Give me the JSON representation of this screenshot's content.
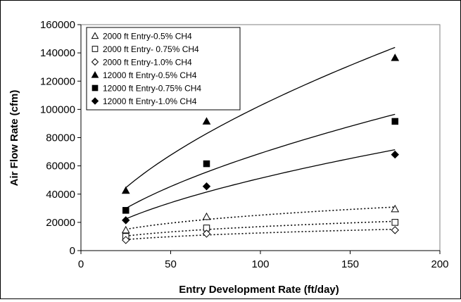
{
  "chart_data": {
    "type": "scatter",
    "title": "",
    "xlabel": "Entry Development Rate (ft/day)",
    "ylabel": "Air Flow Rate (cfm)",
    "xlim": [
      0,
      200
    ],
    "ylim": [
      0,
      160000
    ],
    "xticks": [
      0,
      50,
      100,
      150,
      200
    ],
    "yticks": [
      0,
      20000,
      40000,
      60000,
      80000,
      100000,
      120000,
      140000,
      160000
    ],
    "xtick_labels": [
      "0",
      "50",
      "100",
      "150",
      "200"
    ],
    "ytick_labels": [
      "0",
      "20000",
      "40000",
      "60000",
      "80000",
      "100000",
      "120000",
      "140000",
      "160000"
    ],
    "grid": false,
    "legend_position": "top-left, inside plot",
    "trendline": "power fit through each series",
    "series": [
      {
        "name": "2000 ft Entry-0.5% CH4",
        "marker": "triangle-open",
        "trendline_style": "dotted",
        "points": [
          [
            25,
            14500
          ],
          [
            70,
            24000
          ],
          [
            175,
            29500
          ]
        ]
      },
      {
        "name": "2000 ft Entry- 0.75% CH4",
        "marker": "square-open",
        "trendline_style": "dotted",
        "points": [
          [
            25,
            10000
          ],
          [
            70,
            16000
          ],
          [
            175,
            20000
          ]
        ]
      },
      {
        "name": "2000 ft Entry-1.0% CH4",
        "marker": "diamond-open",
        "trendline_style": "dotted",
        "points": [
          [
            25,
            7500
          ],
          [
            70,
            12000
          ],
          [
            175,
            14500
          ]
        ]
      },
      {
        "name": "12000 ft Entry-0.5% CH4",
        "marker": "triangle-filled",
        "trendline_style": "solid",
        "points": [
          [
            25,
            42500
          ],
          [
            70,
            91500
          ],
          [
            175,
            136500
          ]
        ]
      },
      {
        "name": "12000 ft Entry-0.75% CH4",
        "marker": "square-filled",
        "trendline_style": "solid",
        "points": [
          [
            25,
            28500
          ],
          [
            70,
            61500
          ],
          [
            175,
            91500
          ]
        ]
      },
      {
        "name": "12000 ft Entry-1.0% CH4",
        "marker": "diamond-filled",
        "trendline_style": "solid",
        "points": [
          [
            25,
            21500
          ],
          [
            70,
            45500
          ],
          [
            175,
            68000
          ]
        ]
      }
    ]
  },
  "colors": {
    "ink": "#000000",
    "background": "#ffffff"
  }
}
